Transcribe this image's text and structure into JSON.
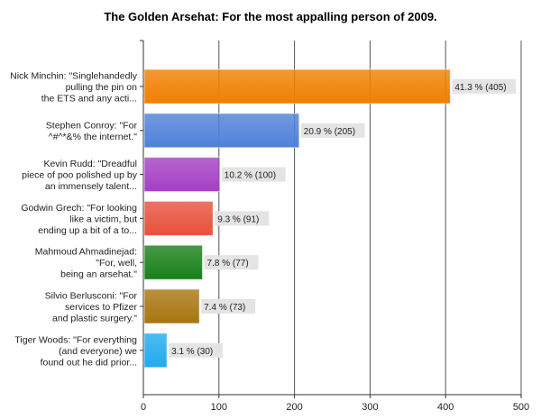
{
  "chart_data": {
    "type": "bar",
    "orientation": "horizontal",
    "title": "The Golden Arsehat: For the most appalling person of 2009.",
    "categories": [
      [
        "Nick Minchin: \"Singlehandedly",
        "pulling the pin on",
        "the ETS and any acti..."
      ],
      [
        "Stephen Conroy: \"For",
        "^#^*&% the internet.\""
      ],
      [
        "Kevin Rudd: \"Dreadful",
        "piece of poo polished up by",
        "an immensely talent..."
      ],
      [
        "Godwin Grech: \"For looking",
        "like a victim, but",
        "ending up a bit of a to..."
      ],
      [
        "Mahmoud Ahmadinejad:",
        "\"For, well,",
        "being an arsehat.\""
      ],
      [
        "Silvio Berlusconi: \"For",
        "services to Pfizer",
        "and plastic surgery.\""
      ],
      [
        "Tiger Woods: \"For everything",
        "(and everyone) we",
        "found out he did prior..."
      ]
    ],
    "values": [
      405,
      205,
      100,
      91,
      77,
      73,
      30
    ],
    "data_labels": [
      "41.3 % (405)",
      "20.9 % (205)",
      "10.2 % (100)",
      "9.3 % (91)",
      "7.8 % (77)",
      "7.4 % (73)",
      "3.1 % (30)"
    ],
    "colors": [
      "#f07f00",
      "#4f80d9",
      "#a43fc4",
      "#e8503a",
      "#188018",
      "#a87510",
      "#22aaee"
    ],
    "xlim": [
      0,
      500
    ],
    "xticks": [
      "0",
      "100",
      "200",
      "300",
      "400",
      "500"
    ],
    "grid": true
  }
}
